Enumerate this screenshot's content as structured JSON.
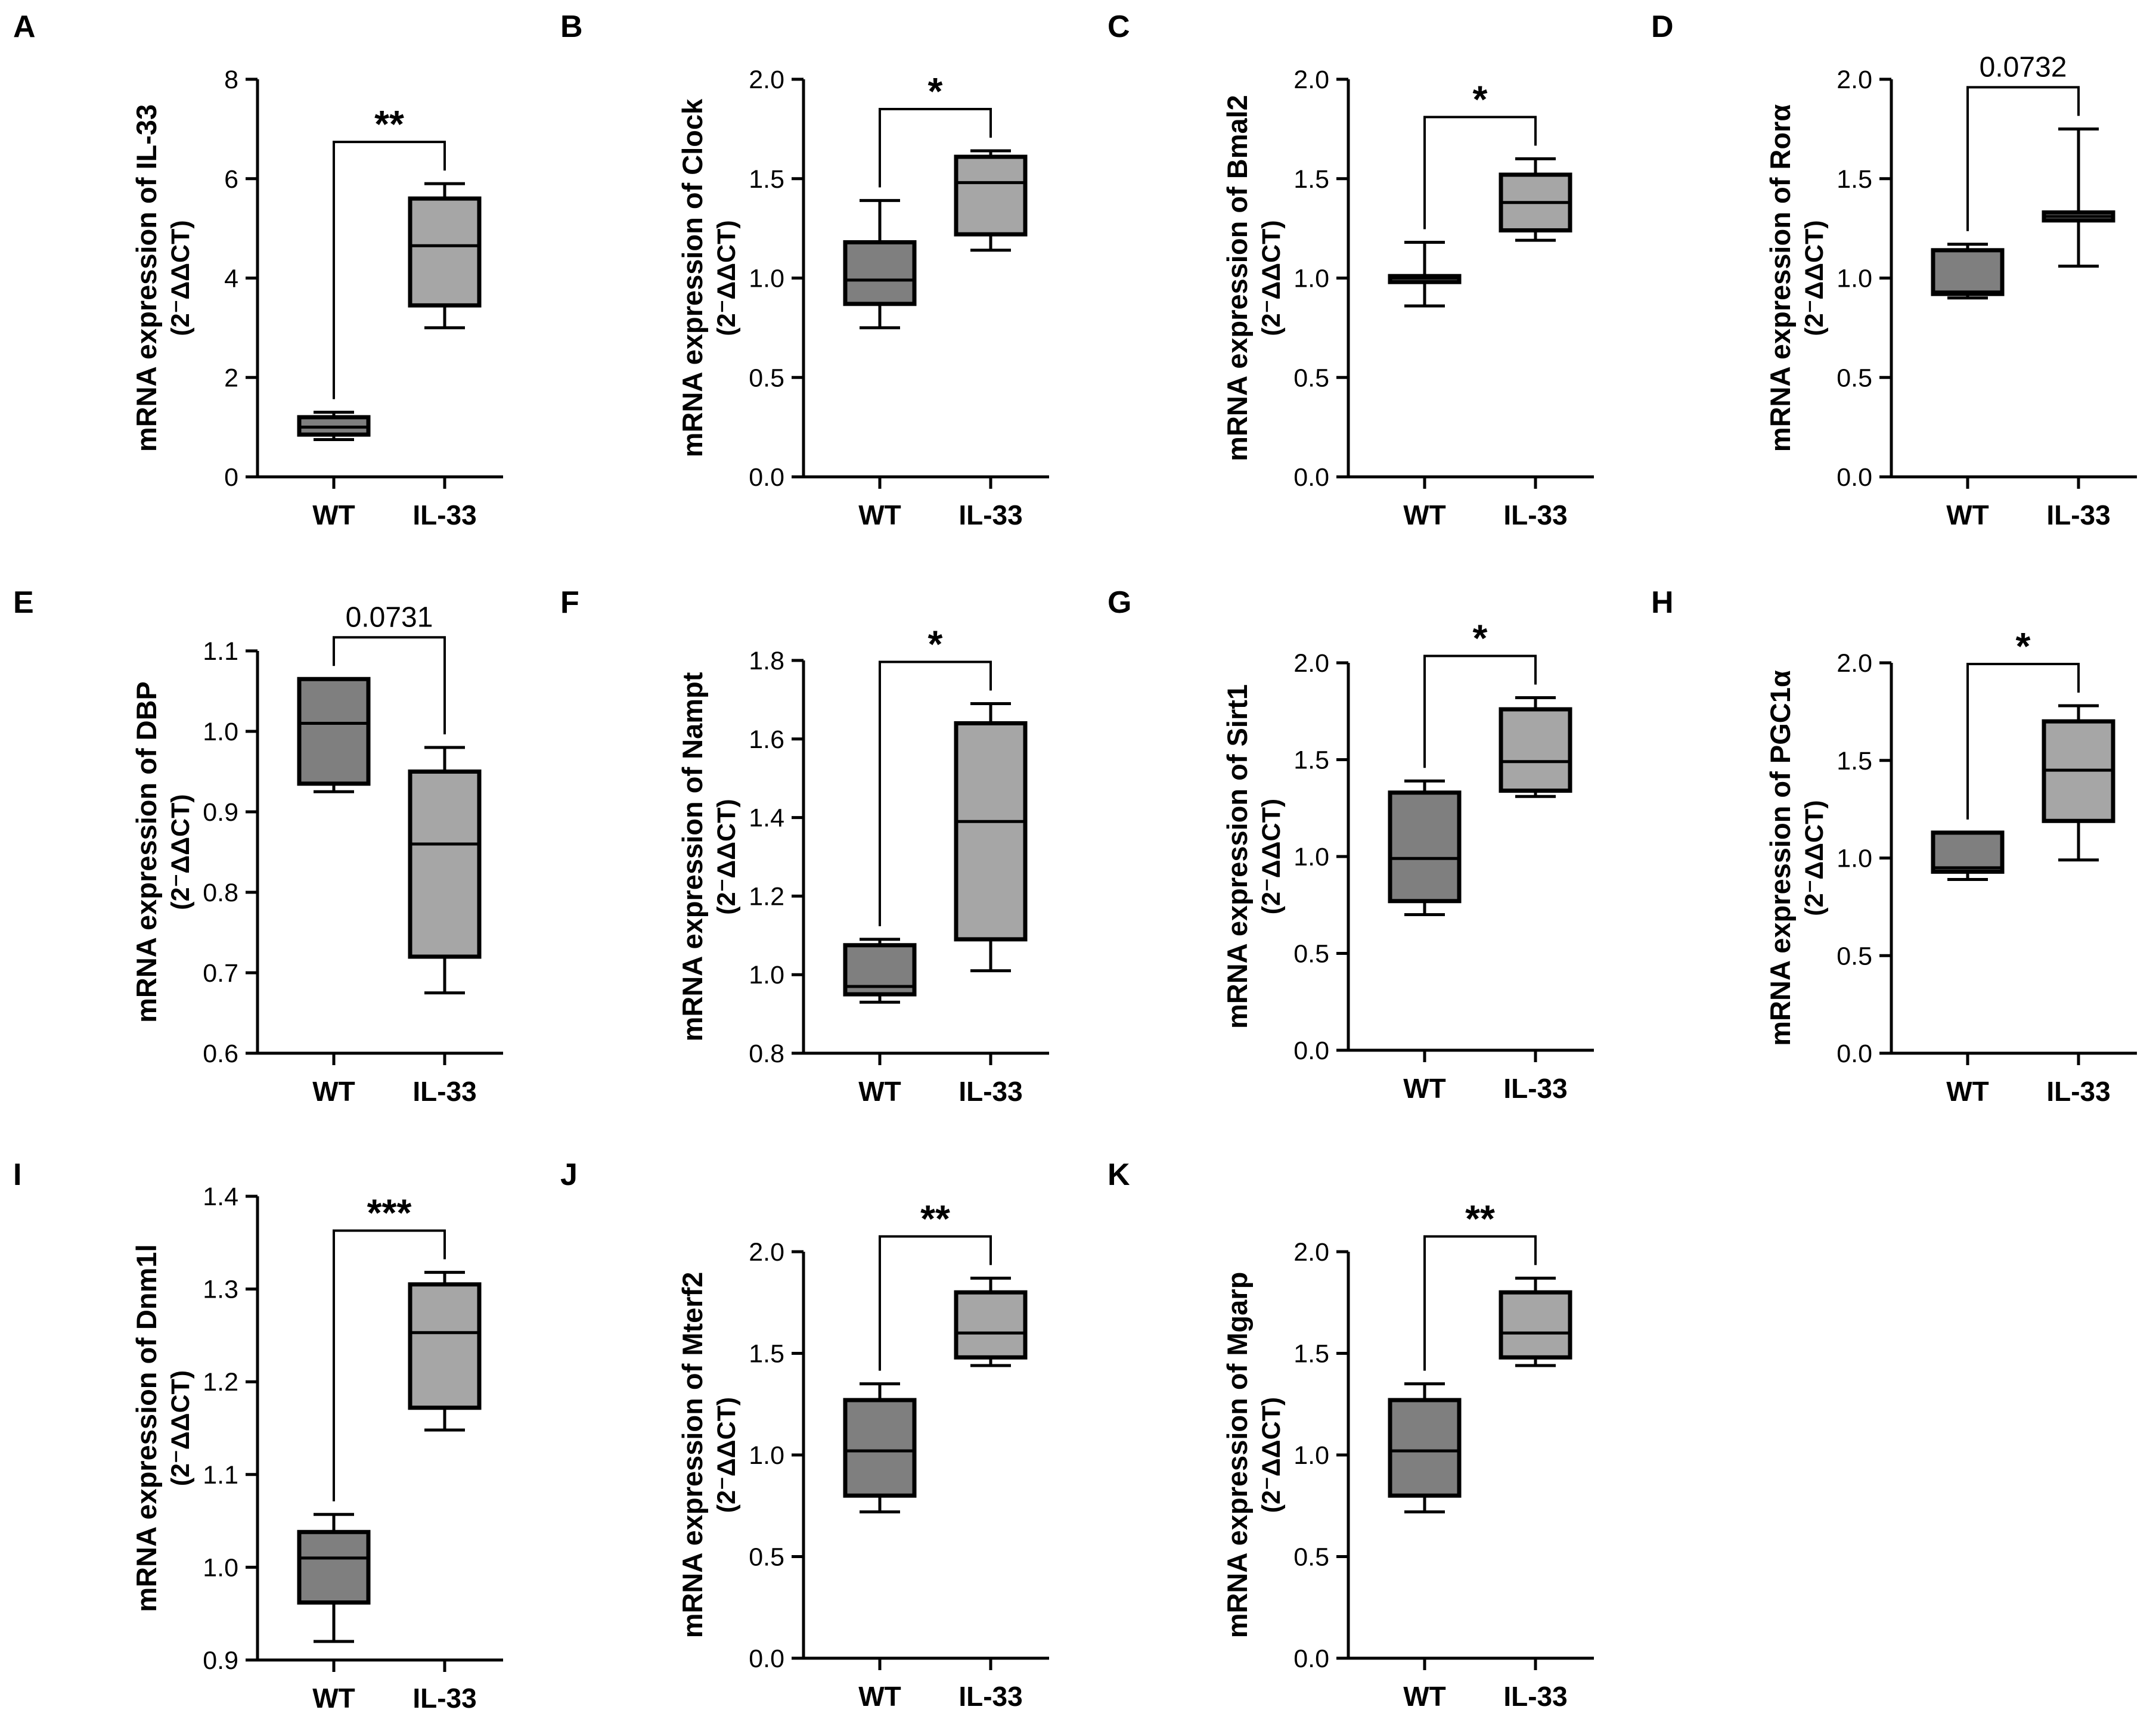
{
  "colors": {
    "wt_fill": "#7f7f7f",
    "il33_fill": "#a6a6a6",
    "stroke": "#000000",
    "background": "#ffffff"
  },
  "chart_data": [
    {
      "type": "box",
      "panel": "A",
      "ylabel": "mRNA expression of IL-33",
      "ylabel_unit": "(2⁻ΔΔCT)",
      "categories": [
        "WT",
        "IL-33"
      ],
      "ylim": [
        0,
        8
      ],
      "yticks": [
        0,
        2,
        4,
        6,
        8
      ],
      "tick_labels": [
        "0",
        "2",
        "4",
        "6",
        "8"
      ],
      "boxes": [
        {
          "category": "WT",
          "min": 0.75,
          "q1": 0.85,
          "median": 1.0,
          "q3": 1.2,
          "max": 1.3
        },
        {
          "category": "IL-33",
          "min": 3.0,
          "q1": 3.45,
          "median": 4.65,
          "q3": 5.6,
          "max": 5.9
        }
      ],
      "annotation": "**",
      "annotation_type": "stars"
    },
    {
      "type": "box",
      "panel": "B",
      "ylabel": "mRNA expression of Clock",
      "ylabel_unit": "(2⁻ΔΔCT)",
      "categories": [
        "WT",
        "IL-33"
      ],
      "ylim": [
        0,
        2
      ],
      "yticks": [
        0,
        0.5,
        1,
        1.5,
        2
      ],
      "tick_labels": [
        "0.0",
        "0.5",
        "1.0",
        "1.5",
        "2.0"
      ],
      "boxes": [
        {
          "category": "WT",
          "min": 0.75,
          "q1": 0.87,
          "median": 0.99,
          "q3": 1.18,
          "max": 1.39
        },
        {
          "category": "IL-33",
          "min": 1.14,
          "q1": 1.22,
          "median": 1.48,
          "q3": 1.61,
          "max": 1.64
        }
      ],
      "annotation": "*",
      "annotation_type": "stars"
    },
    {
      "type": "box",
      "panel": "C",
      "ylabel": "mRNA expression of Bmal2",
      "ylabel_unit": "(2⁻ΔΔCT)",
      "categories": [
        "WT",
        "IL-33"
      ],
      "ylim": [
        0,
        2
      ],
      "yticks": [
        0,
        0.5,
        1,
        1.5,
        2
      ],
      "tick_labels": [
        "0.0",
        "0.5",
        "1.0",
        "1.5",
        "2.0"
      ],
      "boxes": [
        {
          "category": "WT",
          "min": 0.86,
          "q1": 0.98,
          "median": 1.0,
          "q3": 1.01,
          "max": 1.18
        },
        {
          "category": "IL-33",
          "min": 1.19,
          "q1": 1.24,
          "median": 1.38,
          "q3": 1.52,
          "max": 1.6
        }
      ],
      "annotation": "*",
      "annotation_type": "stars"
    },
    {
      "type": "box",
      "panel": "D",
      "ylabel": "mRNA expression of Rorα",
      "ylabel_unit": "(2⁻ΔΔCT)",
      "categories": [
        "WT",
        "IL-33"
      ],
      "ylim": [
        0,
        2
      ],
      "yticks": [
        0,
        0.5,
        1,
        1.5,
        2
      ],
      "tick_labels": [
        "0.0",
        "0.5",
        "1.0",
        "1.5",
        "2.0"
      ],
      "boxes": [
        {
          "category": "WT",
          "min": 0.9,
          "q1": 0.92,
          "median": 0.93,
          "q3": 1.14,
          "max": 1.17
        },
        {
          "category": "IL-33",
          "min": 1.06,
          "q1": 1.29,
          "median": 1.31,
          "q3": 1.33,
          "max": 1.75
        }
      ],
      "annotation": "0.0732",
      "annotation_type": "pvalue"
    },
    {
      "type": "box",
      "panel": "E",
      "ylabel": "mRNA expression of DBP",
      "ylabel_unit": "(2⁻ΔΔCT)",
      "categories": [
        "WT",
        "IL-33"
      ],
      "ylim": [
        0.6,
        1.1
      ],
      "yticks": [
        0.6,
        0.7,
        0.8,
        0.9,
        1.0,
        1.1
      ],
      "tick_labels": [
        "0.6",
        "0.7",
        "0.8",
        "0.9",
        "1.0",
        "1.1"
      ],
      "boxes": [
        {
          "category": "WT",
          "min": 0.925,
          "q1": 0.935,
          "median": 1.01,
          "q3": 1.065,
          "max": 1.065
        },
        {
          "category": "IL-33",
          "min": 0.675,
          "q1": 0.72,
          "median": 0.86,
          "q3": 0.95,
          "max": 0.98
        }
      ],
      "annotation": "0.0731",
      "annotation_type": "pvalue"
    },
    {
      "type": "box",
      "panel": "F",
      "ylabel": "mRNA expression of Nampt",
      "ylabel_unit": "(2⁻ΔΔCT)",
      "categories": [
        "WT",
        "IL-33"
      ],
      "ylim": [
        0.8,
        1.8
      ],
      "yticks": [
        0.8,
        1.0,
        1.2,
        1.4,
        1.6,
        1.8
      ],
      "tick_labels": [
        "0.8",
        "1.0",
        "1.2",
        "1.4",
        "1.6",
        "1.8"
      ],
      "boxes": [
        {
          "category": "WT",
          "min": 0.93,
          "q1": 0.95,
          "median": 0.97,
          "q3": 1.075,
          "max": 1.09
        },
        {
          "category": "IL-33",
          "min": 1.01,
          "q1": 1.09,
          "median": 1.39,
          "q3": 1.64,
          "max": 1.69
        }
      ],
      "annotation": "*",
      "annotation_type": "stars"
    },
    {
      "type": "box",
      "panel": "G",
      "ylabel": "mRNA expression of Sirt1",
      "ylabel_unit": "(2⁻ΔΔCT)",
      "categories": [
        "WT",
        "IL-33"
      ],
      "ylim": [
        0,
        2
      ],
      "yticks": [
        0,
        0.5,
        1,
        1.5,
        2
      ],
      "tick_labels": [
        "0.0",
        "0.5",
        "1.0",
        "1.5",
        "2.0"
      ],
      "boxes": [
        {
          "category": "WT",
          "min": 0.7,
          "q1": 0.77,
          "median": 0.99,
          "q3": 1.33,
          "max": 1.39
        },
        {
          "category": "IL-33",
          "min": 1.31,
          "q1": 1.34,
          "median": 1.49,
          "q3": 1.76,
          "max": 1.82
        }
      ],
      "annotation": "*",
      "annotation_type": "stars"
    },
    {
      "type": "box",
      "panel": "H",
      "ylabel": "mRNA expression of PGC1α",
      "ylabel_unit": "(2⁻ΔΔCT)",
      "categories": [
        "WT",
        "IL-33"
      ],
      "ylim": [
        0,
        2
      ],
      "yticks": [
        0,
        0.5,
        1,
        1.5,
        2
      ],
      "tick_labels": [
        "0.0",
        "0.5",
        "1.0",
        "1.5",
        "2.0"
      ],
      "boxes": [
        {
          "category": "WT",
          "min": 0.89,
          "q1": 0.93,
          "median": 0.95,
          "q3": 1.13,
          "max": 1.13
        },
        {
          "category": "IL-33",
          "min": 0.99,
          "q1": 1.19,
          "median": 1.45,
          "q3": 1.7,
          "max": 1.78
        }
      ],
      "annotation": "*",
      "annotation_type": "stars"
    },
    {
      "type": "box",
      "panel": "I",
      "ylabel": "mRNA expression of Dnm1l",
      "ylabel_unit": "(2⁻ΔΔCT)",
      "categories": [
        "WT",
        "IL-33"
      ],
      "ylim": [
        0.9,
        1.4
      ],
      "yticks": [
        0.9,
        1.0,
        1.1,
        1.2,
        1.3,
        1.4
      ],
      "tick_labels": [
        "0.9",
        "1.0",
        "1.1",
        "1.2",
        "1.3",
        "1.4"
      ],
      "boxes": [
        {
          "category": "WT",
          "min": 0.92,
          "q1": 0.962,
          "median": 1.01,
          "q3": 1.038,
          "max": 1.057
        },
        {
          "category": "IL-33",
          "min": 1.148,
          "q1": 1.172,
          "median": 1.253,
          "q3": 1.305,
          "max": 1.318
        }
      ],
      "annotation": "***",
      "annotation_type": "stars"
    },
    {
      "type": "box",
      "panel": "J",
      "ylabel": "mRNA expression of Mterf2",
      "ylabel_unit": "(2⁻ΔΔCT)",
      "categories": [
        "WT",
        "IL-33"
      ],
      "ylim": [
        0,
        2
      ],
      "yticks": [
        0,
        0.5,
        1,
        1.5,
        2
      ],
      "tick_labels": [
        "0.0",
        "0.5",
        "1.0",
        "1.5",
        "2.0"
      ],
      "boxes": [
        {
          "category": "WT",
          "min": 0.72,
          "q1": 0.8,
          "median": 1.02,
          "q3": 1.27,
          "max": 1.35
        },
        {
          "category": "IL-33",
          "min": 1.44,
          "q1": 1.48,
          "median": 1.6,
          "q3": 1.8,
          "max": 1.87
        }
      ],
      "annotation": "**",
      "annotation_type": "stars"
    },
    {
      "type": "box",
      "panel": "K",
      "ylabel": "mRNA expression of Mgarp",
      "ylabel_unit": "(2⁻ΔΔCT)",
      "categories": [
        "WT",
        "IL-33"
      ],
      "ylim": [
        0,
        2
      ],
      "yticks": [
        0,
        0.5,
        1,
        1.5,
        2
      ],
      "tick_labels": [
        "0.0",
        "0.5",
        "1.0",
        "1.5",
        "2.0"
      ],
      "boxes": [
        {
          "category": "WT",
          "min": 0.72,
          "q1": 0.8,
          "median": 1.02,
          "q3": 1.27,
          "max": 1.35
        },
        {
          "category": "IL-33",
          "min": 1.44,
          "q1": 1.48,
          "median": 1.6,
          "q3": 1.8,
          "max": 1.87
        }
      ],
      "annotation": "**",
      "annotation_type": "stars"
    }
  ]
}
